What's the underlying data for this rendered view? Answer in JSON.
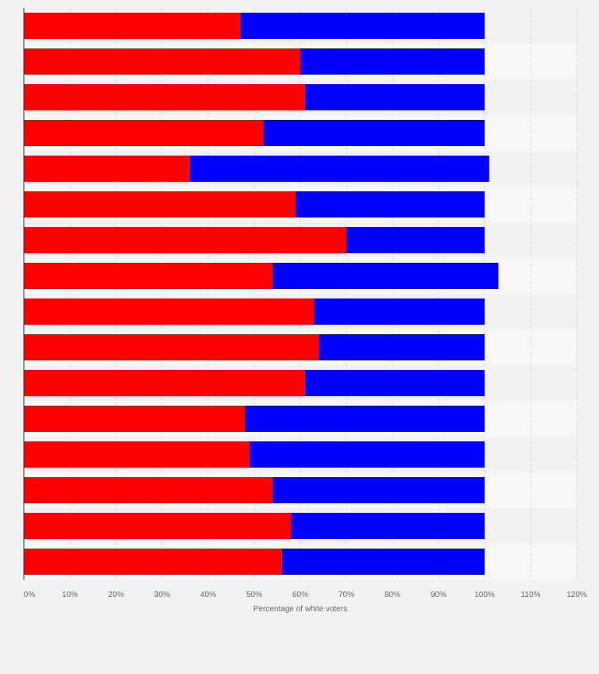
{
  "chart_data": {
    "type": "bar",
    "orientation": "horizontal",
    "stacked": true,
    "title": "",
    "xlabel": "Percentage of white voters",
    "ylabel": "",
    "xlim": [
      0,
      120
    ],
    "x_ticks": [
      "0%",
      "10%",
      "20%",
      "30%",
      "40%",
      "50%",
      "60%",
      "70%",
      "80%",
      "90%",
      "100%",
      "110%",
      "120%"
    ],
    "grid": "vertical dashed",
    "legend": "none",
    "categories": [
      "",
      "",
      "",
      "",
      "",
      "",
      "",
      "",
      "",
      "",
      "",
      "",
      "",
      "",
      "",
      ""
    ],
    "series": [
      {
        "color": "#ff0000",
        "values": [
          47,
          60,
          61,
          52,
          36,
          59,
          70,
          54,
          63,
          64,
          61,
          48,
          49,
          54,
          58,
          56
        ]
      },
      {
        "color": "#0000ff",
        "values": [
          53,
          40,
          39,
          48,
          65,
          41,
          30,
          49,
          37,
          36,
          39,
          52,
          51,
          46,
          42,
          44
        ]
      }
    ]
  }
}
